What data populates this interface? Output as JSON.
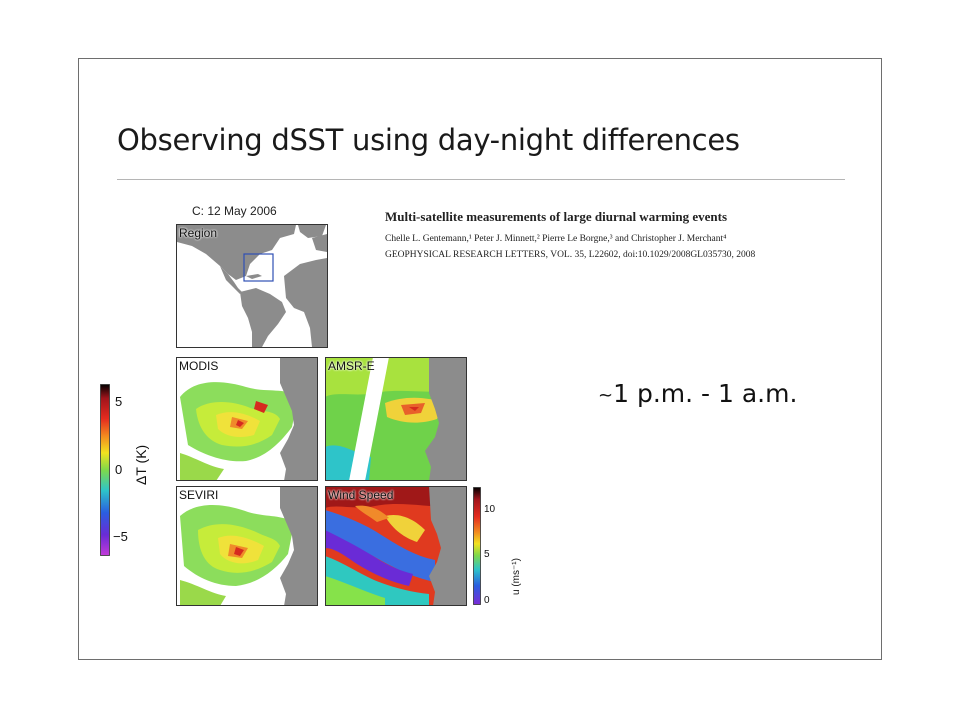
{
  "slide": {
    "title": "Observing dSST using day-night differences",
    "time_range": "1 p.m. - 1 a.m.",
    "time_prefix": "~"
  },
  "citation": {
    "title": "Multi-satellite measurements of large diurnal warming events",
    "authors": "Chelle L. Gentemann,¹ Peter J. Minnett,² Pierre Le Borgne,³ and Christopher J. Merchant⁴",
    "journal": "GEOPHYSICAL RESEARCH LETTERS, VOL. 35, L22602, doi:10.1029/2008GL035730, 2008"
  },
  "figure": {
    "date_label": "C: 12 May 2006",
    "panels": {
      "region": "Region",
      "modis": "MODIS",
      "amsre": "AMSR-E",
      "seviri": "SEVIRI",
      "wind": "Wind Speed"
    },
    "delta_t_colorbar": {
      "label": "ΔT (K)",
      "ticks": [
        "5",
        "0",
        "−5"
      ]
    },
    "wind_colorbar": {
      "label": "u (ms⁻¹)",
      "ticks": [
        "10",
        "5",
        "0"
      ]
    },
    "colors": {
      "land": "#8c8c8c",
      "water_white": "#ffffff",
      "region_box": "#2f4fb5"
    }
  }
}
